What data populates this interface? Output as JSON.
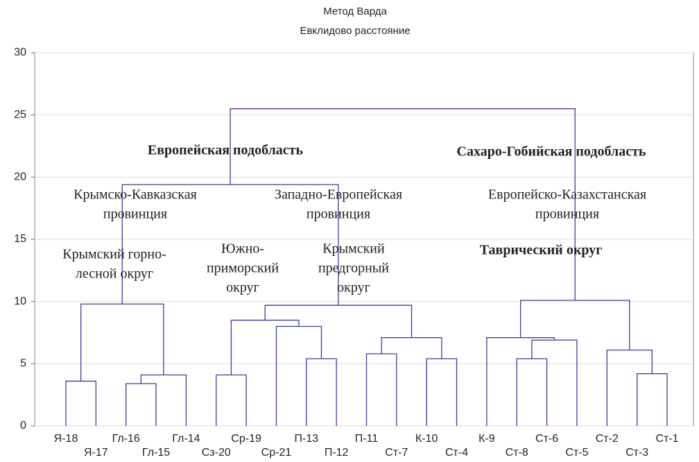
{
  "chart_data": {
    "type": "dendrogram",
    "title": "Метод Варда",
    "subtitle": "Евклидово расстояние",
    "ylim": [
      0,
      30
    ],
    "yticks": [
      0,
      5,
      10,
      15,
      20,
      25,
      30
    ],
    "grid": true,
    "color": "#3c3c9c",
    "leaves": [
      "Я-18",
      "Я-17",
      "Гл-16",
      "Гл-15",
      "Гл-14",
      "Сз-20",
      "Ср-19",
      "Ср-21",
      "П-13",
      "П-12",
      "П-11",
      "Ст-7",
      "К-10",
      "Ст-4",
      "К-9",
      "Ст-8",
      "Ст-6",
      "Ст-5",
      "Ст-2",
      "Ст-3",
      "Ст-1"
    ],
    "merges": [
      {
        "children": [
          0,
          1
        ],
        "height": 3.6
      },
      {
        "children": [
          2,
          3
        ],
        "height": 3.4
      },
      {
        "children": [
          22,
          4
        ],
        "height": 4.1
      },
      {
        "children": [
          21,
          23
        ],
        "height": 9.8
      },
      {
        "children": [
          5,
          6
        ],
        "height": 4.1
      },
      {
        "children": [
          8,
          9
        ],
        "height": 5.4
      },
      {
        "children": [
          7,
          26
        ],
        "height": 8.0
      },
      {
        "children": [
          25,
          27
        ],
        "height": 8.5
      },
      {
        "children": [
          10,
          11
        ],
        "height": 5.8
      },
      {
        "children": [
          12,
          13
        ],
        "height": 5.4
      },
      {
        "children": [
          29,
          30
        ],
        "height": 7.1
      },
      {
        "children": [
          28,
          31
        ],
        "height": 9.7
      },
      {
        "children": [
          24,
          32
        ],
        "height": 19.4
      },
      {
        "children": [
          15,
          16
        ],
        "height": 5.4
      },
      {
        "children": [
          34,
          17
        ],
        "height": 6.9
      },
      {
        "children": [
          14,
          35
        ],
        "height": 7.1
      },
      {
        "children": [
          19,
          20
        ],
        "height": 4.2
      },
      {
        "children": [
          18,
          37
        ],
        "height": 6.1
      },
      {
        "children": [
          36,
          38
        ],
        "height": 10.1
      },
      {
        "children": [
          33,
          39
        ],
        "height": 25.5
      }
    ],
    "annotations": [
      {
        "lines": [
          "Европейская подобласть"
        ]
      },
      {
        "lines": [
          "Сахаро-Гобийская подобласть"
        ]
      },
      {
        "lines": [
          "Крымско-Кавказская",
          "провинция"
        ]
      },
      {
        "lines": [
          "Западно-Европейская",
          "провинция"
        ]
      },
      {
        "lines": [
          "Европейско-Казахстанская",
          "провинция"
        ]
      },
      {
        "lines": [
          "Крымский горно-",
          "лесной округ"
        ]
      },
      {
        "lines": [
          "Южно-",
          "приморский",
          "округ"
        ]
      },
      {
        "lines": [
          "Крымский",
          "предгорный",
          "округ"
        ]
      },
      {
        "lines": [
          "Таврический округ"
        ]
      }
    ]
  }
}
